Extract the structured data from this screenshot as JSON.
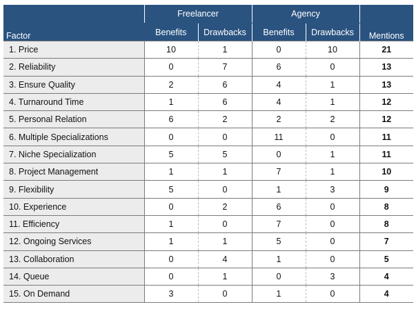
{
  "header": {
    "factor": "Factor",
    "freelancer": "Freelancer",
    "agency": "Agency",
    "benefits": "Benefits",
    "drawbacks": "Drawbacks",
    "mentions": "Mentions"
  },
  "colors": {
    "header_bg": "#2a5380",
    "factor_bg": "#ececec"
  },
  "rows": [
    {
      "factor": "1. Price",
      "fb": "10",
      "fd": "1",
      "ab": "0",
      "ad": "10",
      "mentions": "21"
    },
    {
      "factor": "2. Reliability",
      "fb": "0",
      "fd": "7",
      "ab": "6",
      "ad": "0",
      "mentions": "13"
    },
    {
      "factor": "3. Ensure Quality",
      "fb": "2",
      "fd": "6",
      "ab": "4",
      "ad": "1",
      "mentions": "13"
    },
    {
      "factor": "4. Turnaround Time",
      "fb": "1",
      "fd": "6",
      "ab": "4",
      "ad": "1",
      "mentions": "12"
    },
    {
      "factor": "5. Personal Relation",
      "fb": "6",
      "fd": "2",
      "ab": "2",
      "ad": "2",
      "mentions": "12"
    },
    {
      "factor": "6. Multiple Specializations",
      "fb": "0",
      "fd": "0",
      "ab": "11",
      "ad": "0",
      "mentions": "11"
    },
    {
      "factor": "7. Niche Specialization",
      "fb": "5",
      "fd": "5",
      "ab": "0",
      "ad": "1",
      "mentions": "11"
    },
    {
      "factor": "8. Project Management",
      "fb": "1",
      "fd": "1",
      "ab": "7",
      "ad": "1",
      "mentions": "10"
    },
    {
      "factor": "9. Flexibility",
      "fb": "5",
      "fd": "0",
      "ab": "1",
      "ad": "3",
      "mentions": "9"
    },
    {
      "factor": "10. Experience",
      "fb": "0",
      "fd": "2",
      "ab": "6",
      "ad": "0",
      "mentions": "8"
    },
    {
      "factor": "11. Efficiency",
      "fb": "1",
      "fd": "0",
      "ab": "7",
      "ad": "0",
      "mentions": "8"
    },
    {
      "factor": "12. Ongoing Services",
      "fb": "1",
      "fd": "1",
      "ab": "5",
      "ad": "0",
      "mentions": "7"
    },
    {
      "factor": "13. Collaboration",
      "fb": "0",
      "fd": "4",
      "ab": "1",
      "ad": "0",
      "mentions": "5"
    },
    {
      "factor": "14. Queue",
      "fb": "0",
      "fd": "1",
      "ab": "0",
      "ad": "3",
      "mentions": "4"
    },
    {
      "factor": "15. On Demand",
      "fb": "3",
      "fd": "0",
      "ab": "1",
      "ad": "0",
      "mentions": "4"
    }
  ]
}
